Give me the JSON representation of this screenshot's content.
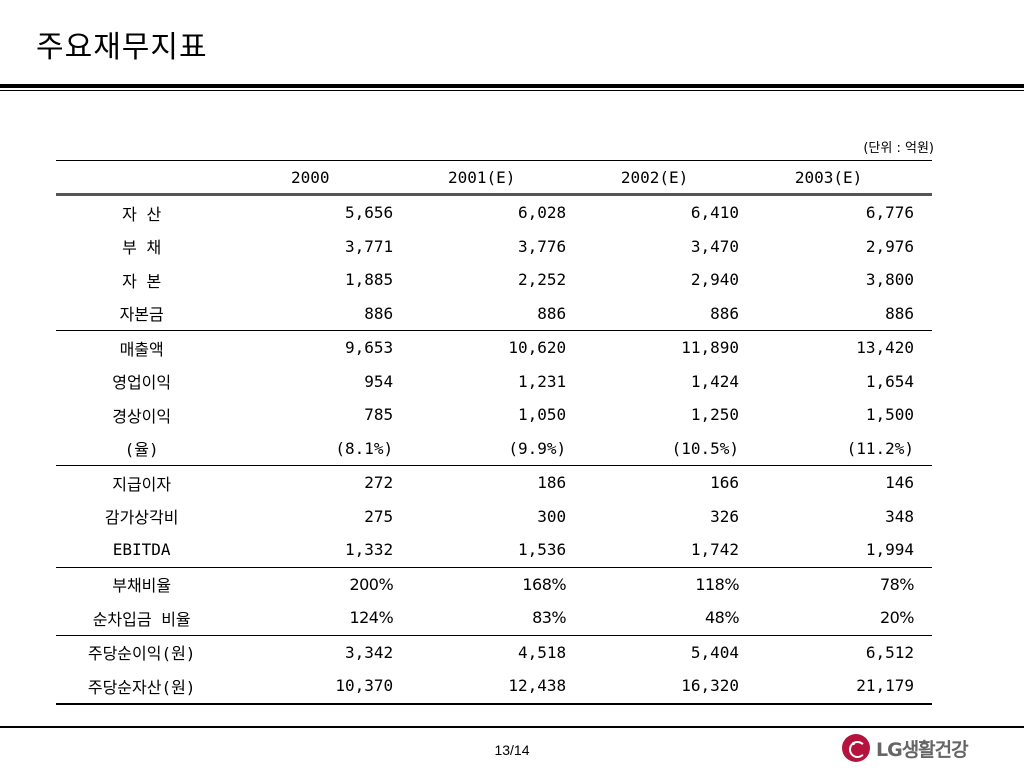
{
  "title": "주요재무지표",
  "unit_note": "(단위 : 억원)",
  "columns": [
    "",
    "2000",
    "2001(E)",
    "2002(E)",
    "2003(E)"
  ],
  "groups": [
    [
      {
        "label": "자 산",
        "values": [
          "5,656",
          "6,028",
          "6,410",
          "6,776"
        ]
      },
      {
        "label": "부 채",
        "values": [
          "3,771",
          "3,776",
          "3,470",
          "2,976"
        ]
      },
      {
        "label": "자 본",
        "values": [
          "1,885",
          "2,252",
          "2,940",
          "3,800"
        ]
      },
      {
        "label": "자본금",
        "values": [
          "886",
          "886",
          "886",
          "886"
        ]
      }
    ],
    [
      {
        "label": "매출액",
        "values": [
          "9,653",
          "10,620",
          "11,890",
          "13,420"
        ]
      },
      {
        "label": "영업이익",
        "values": [
          "954",
          "1,231",
          "1,424",
          "1,654"
        ]
      },
      {
        "label": "경상이익",
        "values": [
          "785",
          "1,050",
          "1,250",
          "1,500"
        ]
      },
      {
        "label": "(율)",
        "values": [
          "(8.1%)",
          "(9.9%)",
          "(10.5%)",
          "(11.2%)"
        ]
      }
    ],
    [
      {
        "label": "지급이자",
        "values": [
          "272",
          "186",
          "166",
          "146"
        ]
      },
      {
        "label": "감가상각비",
        "values": [
          "275",
          "300",
          "326",
          "348"
        ]
      },
      {
        "label": "EBITDA",
        "values": [
          "1,332",
          "1,536",
          "1,742",
          "1,994"
        ]
      }
    ],
    [
      {
        "label": "부채비율",
        "values": [
          "200%",
          "168%",
          "118%",
          "78%"
        ]
      },
      {
        "label": "순차입금 비율",
        "values": [
          "124%",
          "83%",
          "48%",
          "20%"
        ]
      }
    ],
    [
      {
        "label": "주당순이익(원)",
        "values": [
          "3,342",
          "4,518",
          "5,404",
          "6,512"
        ]
      },
      {
        "label": "주당순자산(원)",
        "values": [
          "10,370",
          "12,438",
          "16,320",
          "21,179"
        ]
      }
    ]
  ],
  "footer": {
    "page": "13/14",
    "logo_text": "LG생활건강",
    "logo_color": "#b5123e"
  }
}
